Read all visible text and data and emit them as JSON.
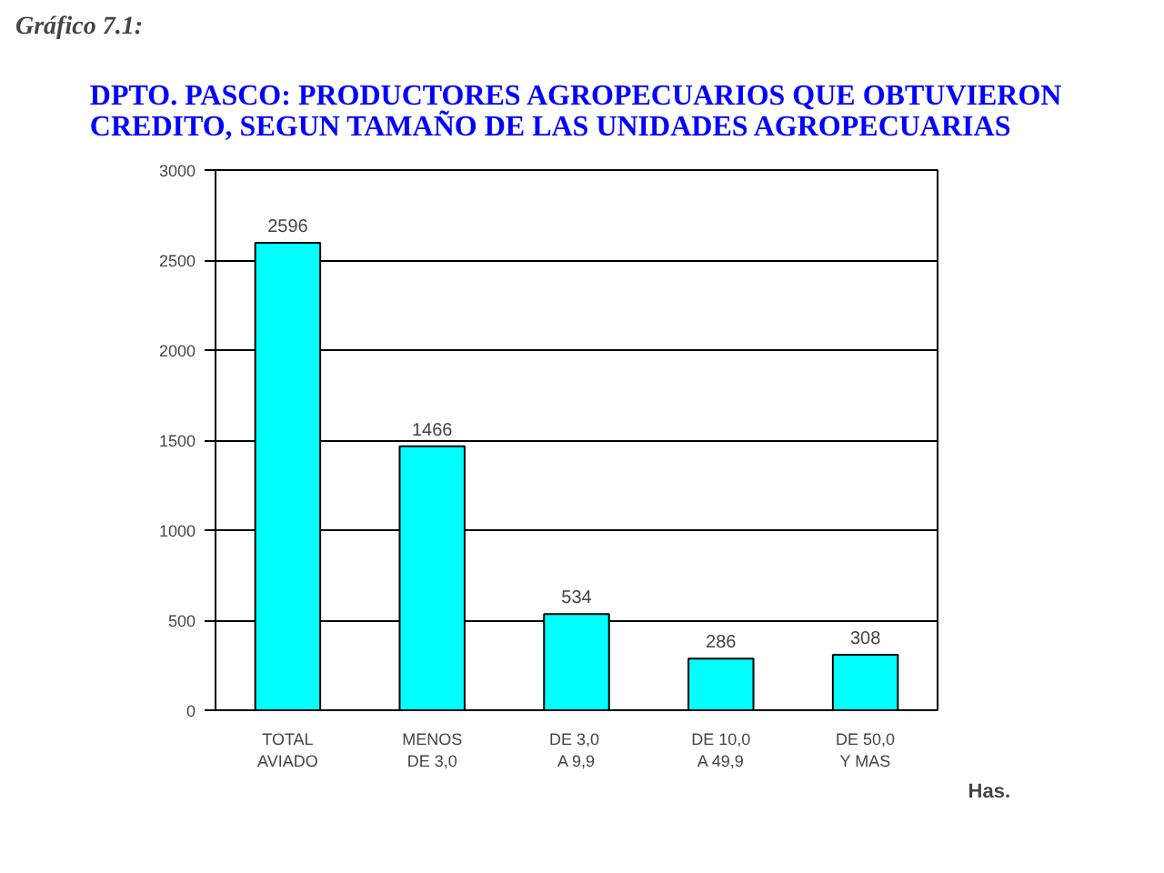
{
  "chart_data": {
    "type": "bar",
    "title": "DPTO. PASCO: PRODUCTORES AGROPECUARIOS QUE OBTUVIERON\nCREDITO, SEGUN TAMAÑO DE LAS UNIDADES AGROPECUARIAS",
    "annotations": [
      "Gráfico 7.1:"
    ],
    "xlabel": "Has.",
    "categories": [
      "TOTAL\nAVIADO",
      "MENOS\nDE 3,0",
      "DE  3,0\nA 9,9",
      "DE 10,0\nA 49,9",
      "DE 50,0\nY MAS"
    ],
    "values": [
      2596,
      1466,
      534,
      286,
      308
    ],
    "color": "#00ffff",
    "ylim": [
      0,
      3000
    ],
    "yticks": [
      0,
      500,
      1000,
      1500,
      2000,
      2500,
      3000
    ],
    "grid": "y",
    "data_labels": true
  }
}
